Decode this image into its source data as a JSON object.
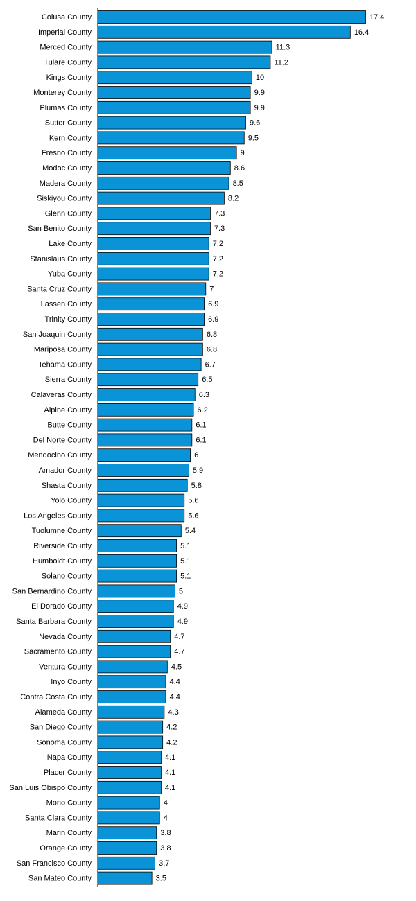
{
  "chart_data": {
    "type": "bar",
    "orientation": "horizontal",
    "title": "",
    "xlabel": "",
    "ylabel": "",
    "grid": false,
    "legend": "none",
    "bar_color": "#0A93D6",
    "bar_edge_color": "#000000",
    "axis_color": "#000000",
    "categories": [
      "Colusa County",
      "Imperial County",
      "Merced County",
      "Tulare County",
      "Kings County",
      "Monterey County",
      "Plumas County",
      "Sutter County",
      "Kern County",
      "Fresno County",
      "Modoc County",
      "Madera County",
      "Siskiyou County",
      "Glenn County",
      "San Benito County",
      "Lake County",
      "Stanislaus County",
      "Yuba County",
      "Santa Cruz County",
      "Lassen County",
      "Trinity County",
      "San Joaquin County",
      "Mariposa County",
      "Tehama County",
      "Sierra County",
      "Calaveras County",
      "Alpine County",
      "Butte County",
      "Del Norte County",
      "Mendocino County",
      "Amador County",
      "Shasta County",
      "Yolo County",
      "Los Angeles County",
      "Tuolumne County",
      "Riverside County",
      "Humboldt County",
      "Solano County",
      "San Bernardino County",
      "El Dorado County",
      "Santa Barbara County",
      "Nevada County",
      "Sacramento County",
      "Ventura County",
      "Inyo County",
      "Contra Costa County",
      "Alameda County",
      "San Diego County",
      "Sonoma County",
      "Napa County",
      "Placer County",
      "San Luis Obispo County",
      "Mono County",
      "Santa Clara County",
      "Marin County",
      "Orange County",
      "San Francisco County",
      "San Mateo County"
    ],
    "values": [
      17.4,
      16.4,
      11.3,
      11.2,
      10,
      9.9,
      9.9,
      9.6,
      9.5,
      9,
      8.6,
      8.5,
      8.2,
      7.3,
      7.3,
      7.2,
      7.2,
      7.2,
      7,
      6.9,
      6.9,
      6.8,
      6.8,
      6.7,
      6.5,
      6.3,
      6.2,
      6.1,
      6.1,
      6,
      5.9,
      5.8,
      5.6,
      5.6,
      5.4,
      5.1,
      5.1,
      5.1,
      5,
      4.9,
      4.9,
      4.7,
      4.7,
      4.5,
      4.4,
      4.4,
      4.3,
      4.2,
      4.2,
      4.1,
      4.1,
      4.1,
      4,
      4,
      3.8,
      3.8,
      3.7,
      3.5
    ],
    "value_labels": [
      "17.4",
      "16.4",
      "11.3",
      "11.2",
      "10",
      "9.9",
      "9.9",
      "9.6",
      "9.5",
      "9",
      "8.6",
      "8.5",
      "8.2",
      "7.3",
      "7.3",
      "7.2",
      "7.2",
      "7.2",
      "7",
      "6.9",
      "6.9",
      "6.8",
      "6.8",
      "6.7",
      "6.5",
      "6.3",
      "6.2",
      "6.1",
      "6.1",
      "6",
      "5.9",
      "5.8",
      "5.6",
      "5.6",
      "5.4",
      "5.1",
      "5.1",
      "5.1",
      "5",
      "4.9",
      "4.9",
      "4.7",
      "4.7",
      "4.5",
      "4.4",
      "4.4",
      "4.3",
      "4.2",
      "4.2",
      "4.1",
      "4.1",
      "4.1",
      "4",
      "4",
      "3.8",
      "3.8",
      "3.7",
      "3.5"
    ],
    "xlim": [
      0,
      17.4
    ]
  }
}
